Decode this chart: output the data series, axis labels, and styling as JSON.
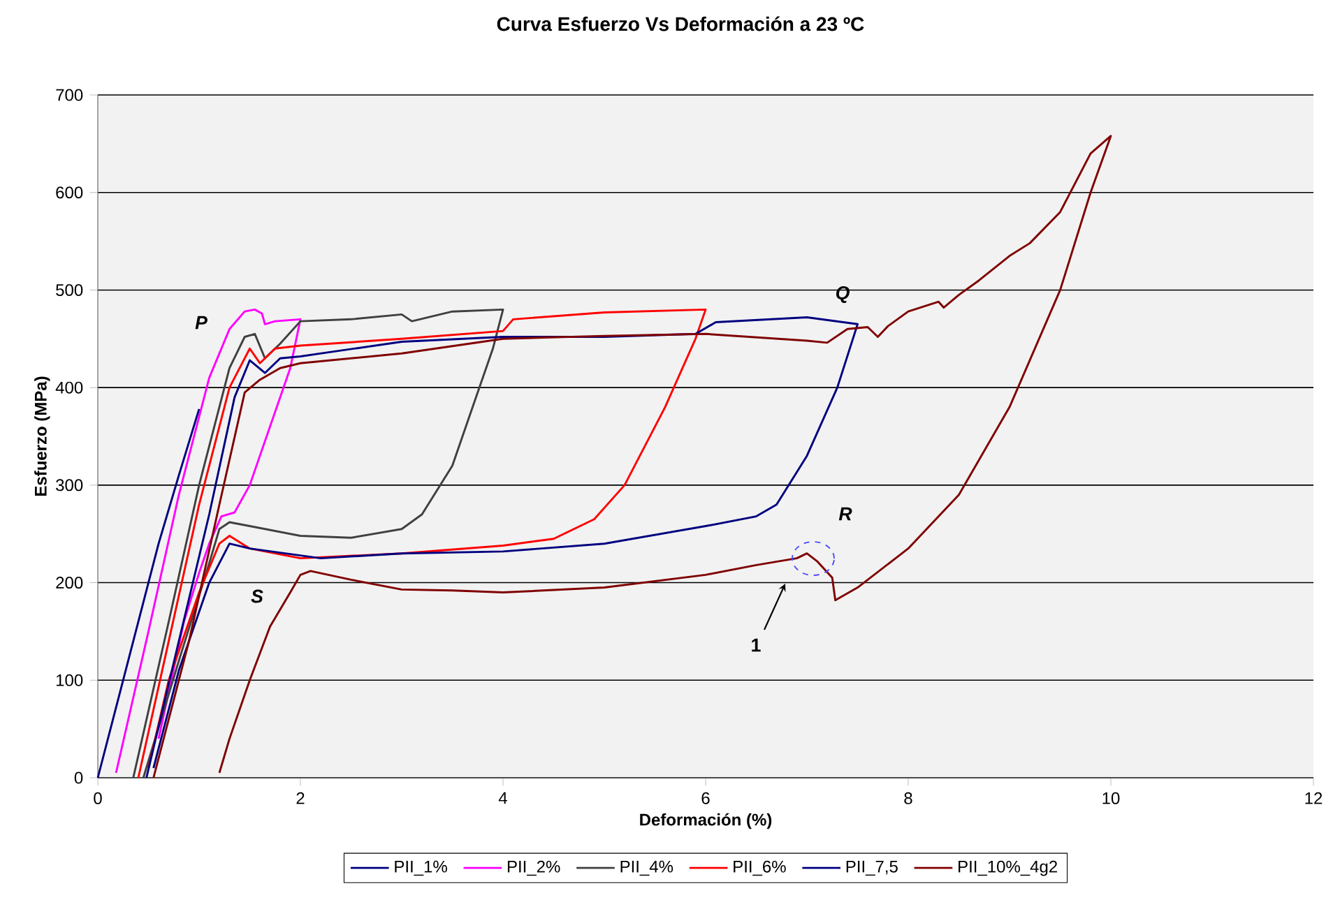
{
  "chart_data": {
    "type": "line",
    "title": "Curva Esfuerzo Vs Deformación a 23 ºC",
    "xlabel": "Deformación (%)",
    "ylabel": "Esfuerzo (MPa)",
    "xlim": [
      0,
      12
    ],
    "ylim": [
      0,
      700
    ],
    "xticks": [
      0,
      2,
      4,
      6,
      8,
      10,
      12
    ],
    "yticks": [
      0,
      100,
      200,
      300,
      400,
      500,
      600,
      700
    ],
    "grid": "y",
    "legend": "bottom",
    "marker": "none",
    "line_style": "solid",
    "series": [
      {
        "name": "PII_1%",
        "color": "#000080",
        "x": [
          0,
          0.3,
          0.6,
          0.8,
          1.0
        ],
        "values": [
          0,
          120,
          240,
          310,
          378
        ]
      },
      {
        "name": "PII_2%",
        "color": "#ff00ff",
        "x": [
          0.18,
          0.5,
          0.8,
          1.1,
          1.3,
          1.45,
          1.55,
          1.62,
          1.65,
          1.75,
          2.0,
          1.9,
          1.7,
          1.5,
          1.35,
          1.22,
          1.1,
          1.0,
          0.85,
          0.6
        ],
        "values": [
          5,
          150,
          290,
          410,
          460,
          478,
          480,
          476,
          465,
          468,
          470,
          420,
          360,
          300,
          272,
          268,
          240,
          210,
          160,
          40
        ]
      },
      {
        "name": "PII_4%",
        "color": "#404040",
        "x": [
          0.35,
          0.7,
          1.0,
          1.3,
          1.45,
          1.55,
          1.65,
          1.8,
          2.0,
          2.5,
          3.0,
          3.1,
          3.5,
          4.0,
          3.9,
          3.7,
          3.5,
          3.2,
          3.0,
          2.5,
          2.0,
          1.5,
          1.3,
          1.2,
          1.1,
          0.8,
          0.45
        ],
        "values": [
          0,
          160,
          300,
          420,
          452,
          455,
          430,
          445,
          468,
          470,
          475,
          468,
          478,
          480,
          440,
          380,
          320,
          270,
          255,
          246,
          248,
          258,
          262,
          255,
          220,
          120,
          0
        ]
      },
      {
        "name": "PII_6%",
        "color": "#ff0000",
        "x": [
          0.4,
          0.7,
          1.0,
          1.3,
          1.5,
          1.6,
          1.75,
          2.0,
          3.0,
          4.0,
          4.1,
          5.0,
          6.0,
          5.9,
          5.6,
          5.2,
          4.9,
          4.5,
          4.0,
          3.0,
          2.0,
          1.5,
          1.3,
          1.2,
          1.0,
          0.7,
          0.5
        ],
        "values": [
          0,
          140,
          280,
          400,
          440,
          425,
          440,
          443,
          450,
          458,
          470,
          477,
          480,
          450,
          380,
          300,
          265,
          245,
          238,
          230,
          225,
          235,
          248,
          240,
          190,
          100,
          10
        ]
      },
      {
        "name": "PII_7,5",
        "color": "#000080",
        "x": [
          0.48,
          0.8,
          1.1,
          1.35,
          1.5,
          1.65,
          1.8,
          2.0,
          3.0,
          4.0,
          5.0,
          5.9,
          6.1,
          7.0,
          7.5,
          7.3,
          7.0,
          6.7,
          6.5,
          6.0,
          5.0,
          4.0,
          3.0,
          2.2,
          1.5,
          1.3,
          1.1,
          0.8,
          0.55
        ],
        "values": [
          0,
          140,
          270,
          390,
          428,
          415,
          430,
          432,
          447,
          452,
          452,
          455,
          467,
          472,
          465,
          400,
          330,
          280,
          268,
          258,
          240,
          232,
          230,
          225,
          235,
          240,
          200,
          110,
          10
        ]
      },
      {
        "name": "PII_10%_4g2",
        "color": "#800000",
        "x": [
          0.55,
          0.9,
          1.2,
          1.45,
          1.6,
          1.8,
          2.0,
          3.0,
          4.0,
          5.0,
          6.0,
          7.0,
          7.2,
          7.4,
          7.6,
          7.7,
          7.8,
          8.0,
          8.3,
          8.35,
          8.5,
          8.7,
          9.0,
          9.2,
          9.5,
          9.8,
          10.0,
          9.8,
          9.5,
          9.0,
          8.5,
          8.0,
          7.5,
          7.28,
          7.25,
          7.1,
          7.0,
          6.9,
          6.5,
          6.0,
          5.0,
          4.0,
          3.5,
          3.0,
          2.5,
          2.1,
          2.0,
          1.9,
          1.7,
          1.5,
          1.3,
          1.2
        ],
        "values": [
          0,
          140,
          280,
          395,
          408,
          420,
          425,
          435,
          450,
          453,
          455,
          448,
          446,
          460,
          462,
          452,
          463,
          478,
          488,
          482,
          495,
          510,
          535,
          548,
          580,
          640,
          658,
          600,
          500,
          380,
          290,
          235,
          195,
          182,
          205,
          222,
          230,
          225,
          218,
          208,
          195,
          190,
          192,
          193,
          203,
          212,
          208,
          190,
          155,
          100,
          40,
          5
        ]
      }
    ],
    "annotations": [
      "P",
      "Q",
      "R",
      "S",
      "1"
    ]
  }
}
